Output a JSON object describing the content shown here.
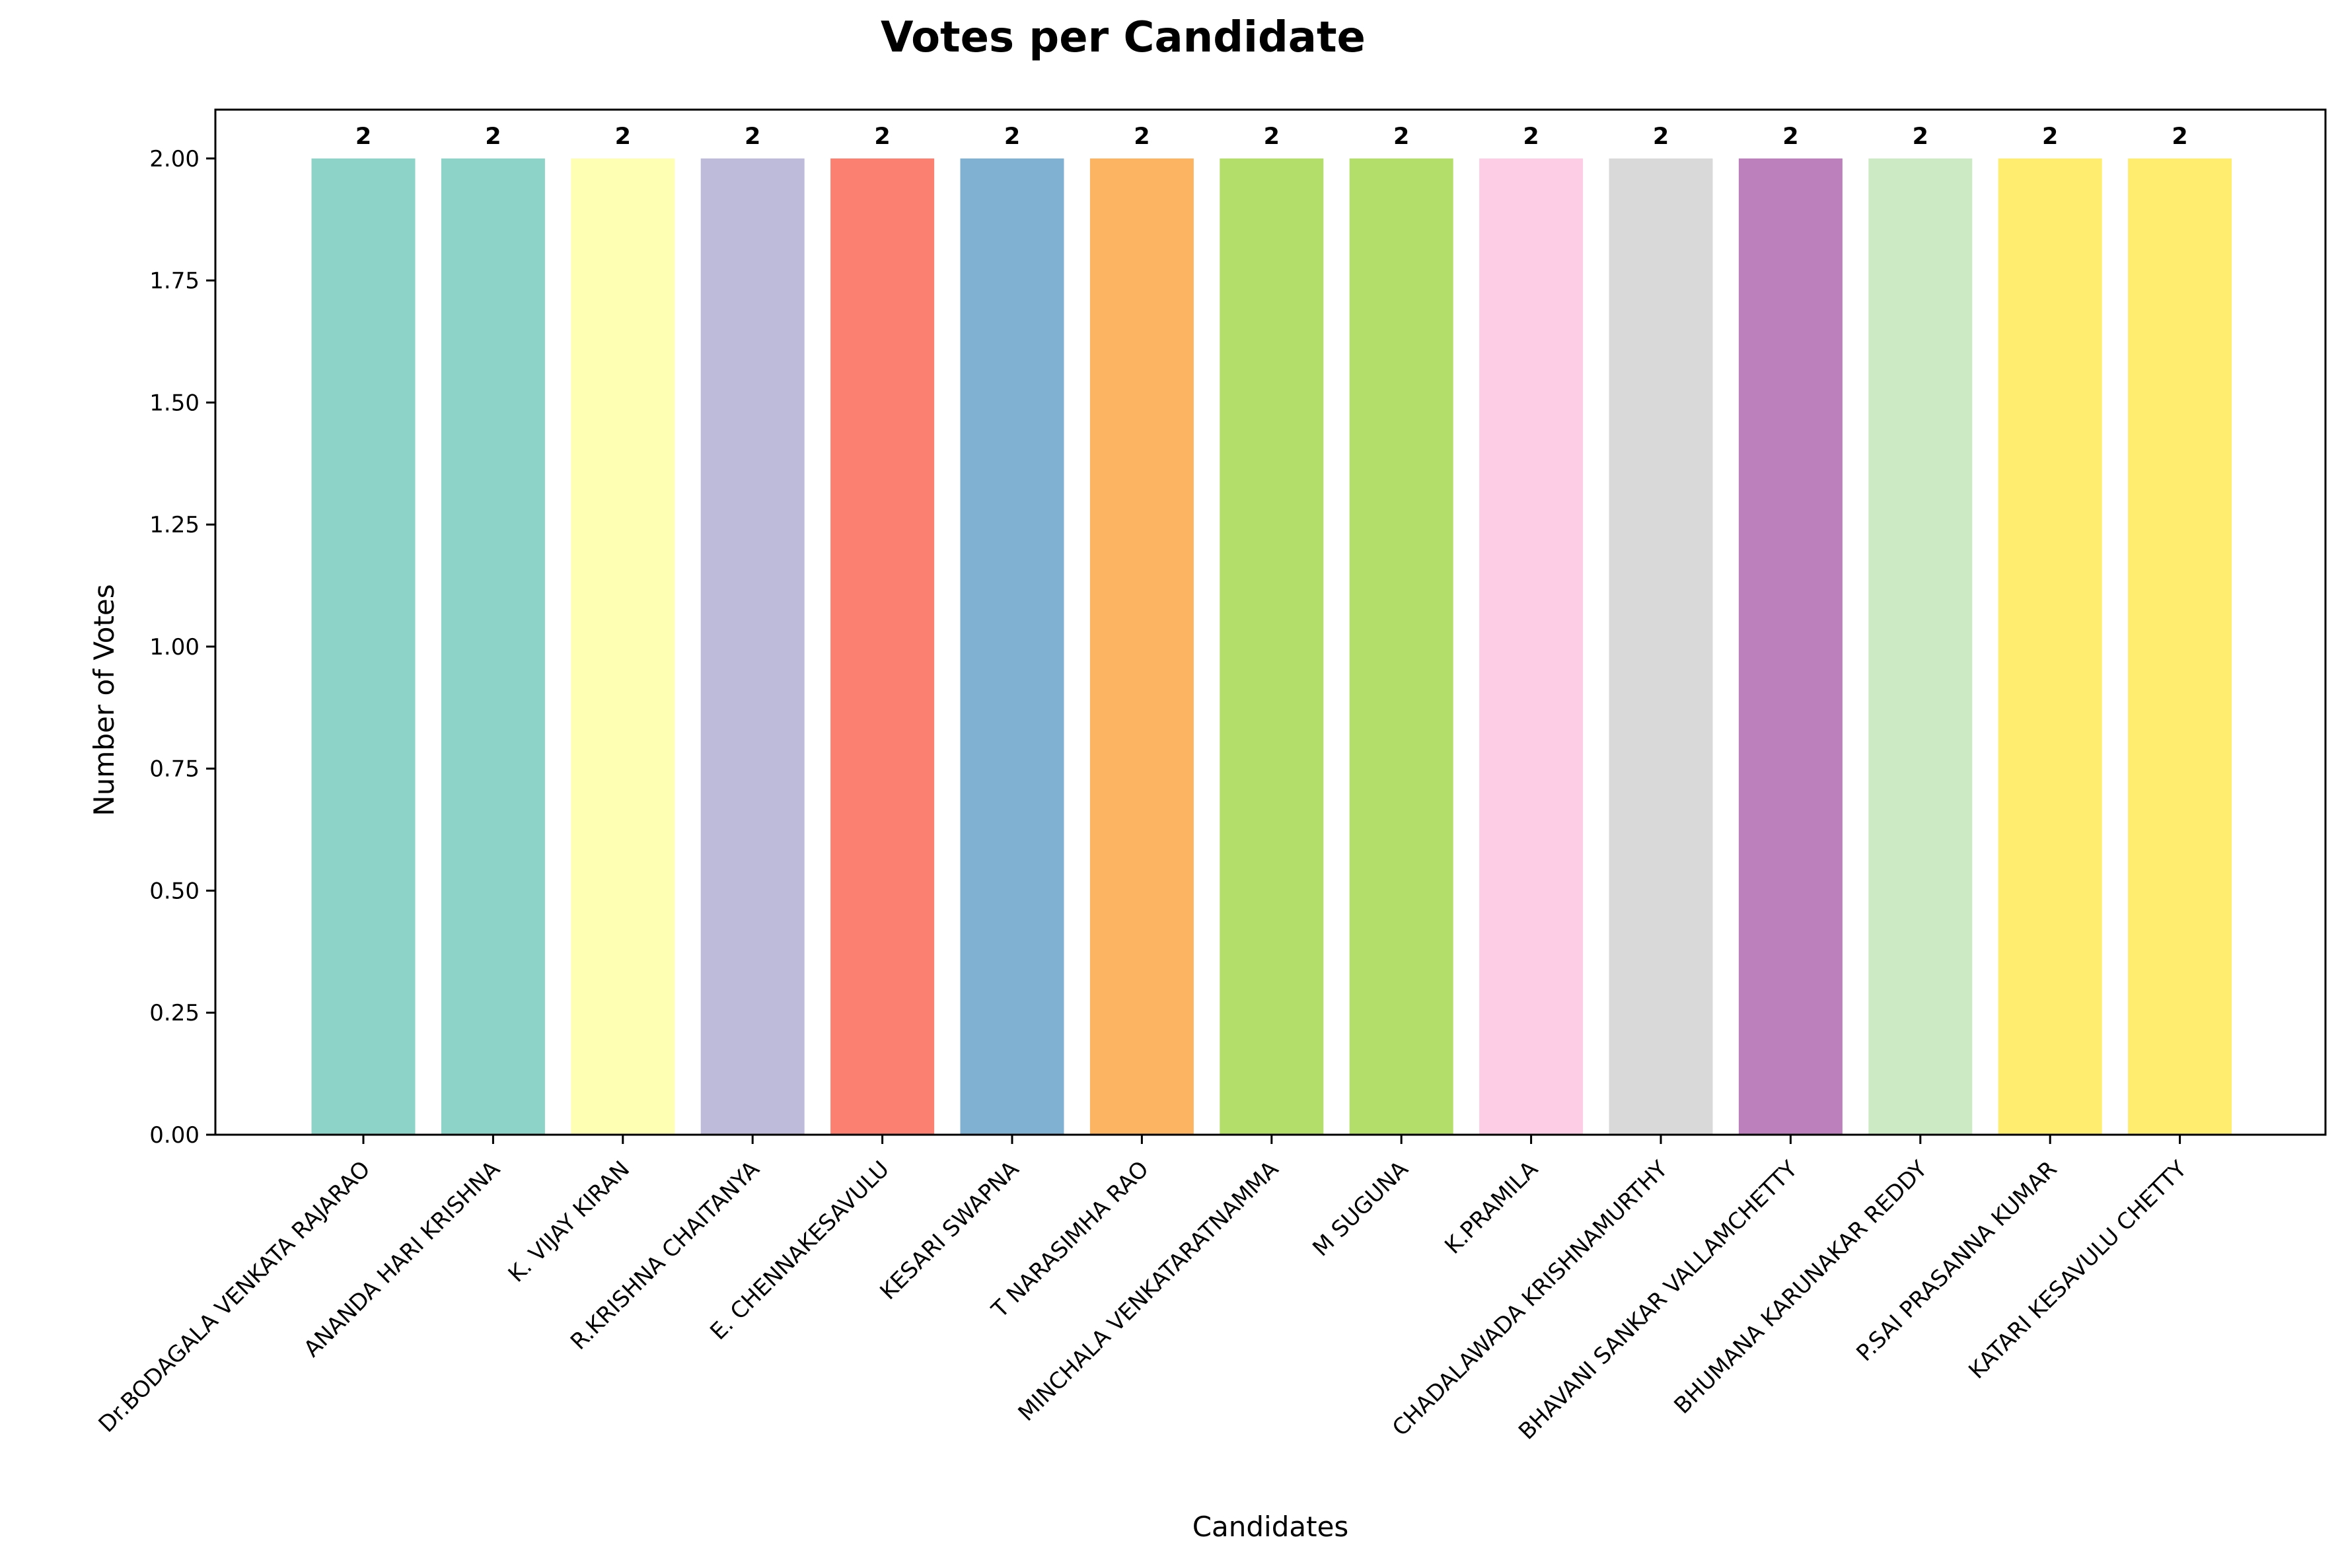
{
  "chart_data": {
    "type": "bar",
    "title": "Votes per Candidate",
    "xlabel": "Candidates",
    "ylabel": "Number of Votes",
    "ylim": [
      0,
      2.1
    ],
    "yticks": [
      "0.00",
      "0.25",
      "0.50",
      "0.75",
      "1.00",
      "1.25",
      "1.50",
      "1.75",
      "2.00"
    ],
    "grid": false,
    "legend": "none",
    "categories": [
      "Dr.BODAGALA VENKATA RAJARAO",
      "ANANDA HARI KRISHNA",
      "K. VIJAY KIRAN",
      "R.KRISHNA CHAITANYA",
      "E. CHENNAKESAVULU",
      "KESARI SWAPNA",
      "T NARASIMHA RAO",
      "MINCHALA VENKATARATNAMMA",
      "M SUGUNA",
      "K.PRAMILA",
      "CHADALAWADA KRISHNAMURTHY",
      "BHAVANI SANKAR VALLAMCHETTY",
      "BHUMANA KARUNAKAR REDDY",
      "P.SAI PRASANNA KUMAR",
      "KATARI  KESAVULU CHETTY"
    ],
    "values": [
      2,
      2,
      2,
      2,
      2,
      2,
      2,
      2,
      2,
      2,
      2,
      2,
      2,
      2,
      2
    ],
    "data_labels": [
      "2",
      "2",
      "2",
      "2",
      "2",
      "2",
      "2",
      "2",
      "2",
      "2",
      "2",
      "2",
      "2",
      "2",
      "2"
    ],
    "colors": [
      "#8dd3c7",
      "#8dd3c7",
      "#ffffb3",
      "#bebada",
      "#fb8072",
      "#80b1d3",
      "#fdb462",
      "#b3de69",
      "#b3de69",
      "#fccde5",
      "#d9d9d9",
      "#bc80bd",
      "#ccebc5",
      "#ffed6f",
      "#ffed6f"
    ]
  }
}
